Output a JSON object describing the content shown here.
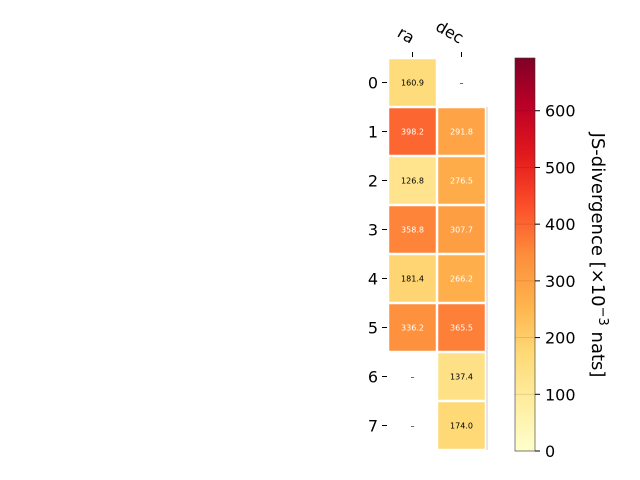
{
  "chart_data": {
    "type": "heatmap",
    "columns": [
      "ra",
      "dec"
    ],
    "rows": [
      "0",
      "1",
      "2",
      "3",
      "4",
      "5",
      "6",
      "7"
    ],
    "values": [
      [
        160.9,
        null
      ],
      [
        398.2,
        291.8
      ],
      [
        126.8,
        276.5
      ],
      [
        358.8,
        307.7
      ],
      [
        181.4,
        266.2
      ],
      [
        336.2,
        365.5
      ],
      [
        null,
        137.4
      ],
      [
        null,
        174.0
      ]
    ],
    "cell_labels": [
      [
        "160.9",
        "–"
      ],
      [
        "398.2",
        "291.8"
      ],
      [
        "126.8",
        "276.5"
      ],
      [
        "358.8",
        "307.7"
      ],
      [
        "181.4",
        "266.2"
      ],
      [
        "336.2",
        "365.5"
      ],
      [
        "–",
        "137.4"
      ],
      [
        "–",
        "174.0"
      ]
    ],
    "colorbar": {
      "label_parts": [
        "JS-divergence [×10",
        "−3",
        " nats]"
      ],
      "vmin": 0,
      "vmax": 693,
      "ticks": [
        0,
        100,
        200,
        300,
        400,
        500,
        600
      ],
      "tick_labels": [
        "0",
        "100",
        "200",
        "300",
        "400",
        "500",
        "600"
      ],
      "colormap": "YlOrRd",
      "colors": [
        "#ffffcc",
        "#ffeda0",
        "#fed976",
        "#feb24c",
        "#fd8d3c",
        "#fc4e2a",
        "#e31a1c",
        "#bd0026",
        "#800026"
      ]
    },
    "grid": false,
    "legend": "colorbar-right"
  }
}
